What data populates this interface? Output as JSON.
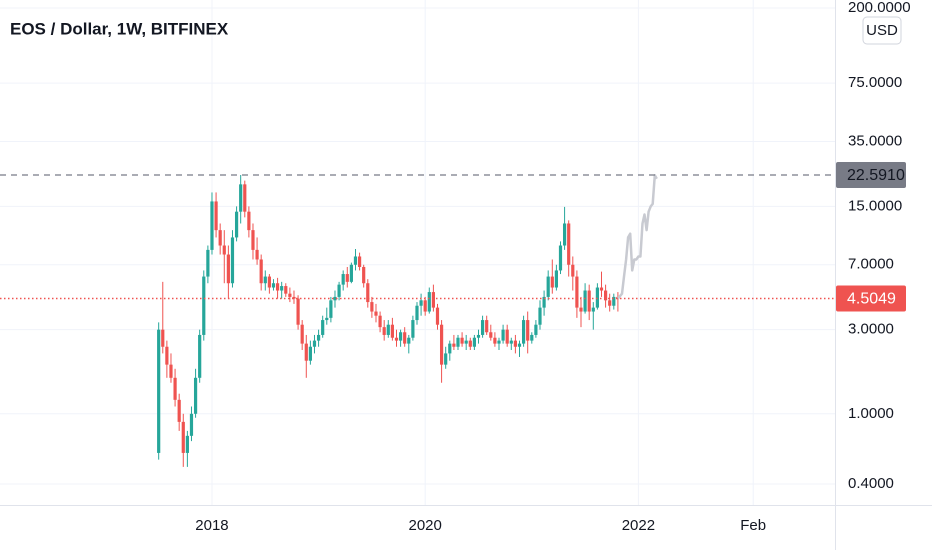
{
  "chart_data": {
    "type": "candlestick",
    "title": "EOS / Dollar, 1W, BITFINEX",
    "currency": "USD",
    "log_scale": true,
    "grid": true,
    "up_color": "#26a69a",
    "down_color": "#ef5350",
    "xlim": [
      -103.4,
      303.9
    ],
    "ylim": [
      0.304,
      222
    ],
    "xticks": [
      {
        "value": 0,
        "label": "2018"
      },
      {
        "value": 104,
        "label": "2020"
      },
      {
        "value": 208,
        "label": "2022"
      },
      {
        "value": 264,
        "label": "Feb"
      }
    ],
    "yticks": [
      {
        "value": 0.4,
        "label": "0.4000"
      },
      {
        "value": 1,
        "label": "1.0000"
      },
      {
        "value": 3,
        "label": "3.0000"
      },
      {
        "value": 7,
        "label": "7.0000"
      },
      {
        "value": 15,
        "label": "15.0000"
      },
      {
        "value": 35,
        "label": "35.0000"
      },
      {
        "value": 75,
        "label": "75.0000"
      },
      {
        "value": 200,
        "label": "200.0000"
      }
    ],
    "price_lines": [
      {
        "value": 22.591,
        "label": "22.5910",
        "color": "#787b86",
        "style": "dashed"
      },
      {
        "value": 4.5049,
        "color": "#ef5350",
        "style": "dotted"
      }
    ],
    "candles": [
      [
        -26,
        0.6,
        3.3,
        0.55,
        3.0
      ],
      [
        -24,
        3.0,
        5.6,
        2.2,
        2.4
      ],
      [
        -22,
        2.4,
        2.6,
        1.6,
        1.9
      ],
      [
        -20,
        1.9,
        2.2,
        1.5,
        1.6
      ],
      [
        -18,
        1.6,
        1.8,
        1.1,
        1.2
      ],
      [
        -16,
        1.2,
        1.3,
        0.8,
        0.9
      ],
      [
        -14,
        0.9,
        1.0,
        0.5,
        0.6
      ],
      [
        -12,
        0.6,
        0.8,
        0.5,
        0.75
      ],
      [
        -10,
        0.75,
        1.1,
        0.7,
        1.0
      ],
      [
        -8,
        1.0,
        1.8,
        0.95,
        1.6
      ],
      [
        -6,
        1.6,
        3.0,
        1.5,
        2.8
      ],
      [
        -4,
        2.8,
        6.5,
        2.6,
        6.0
      ],
      [
        -2,
        6.0,
        9.0,
        5.5,
        8.5
      ],
      [
        0,
        8.5,
        18,
        8,
        16
      ],
      [
        2,
        16,
        18,
        10,
        11
      ],
      [
        4,
        11,
        12,
        8,
        9
      ],
      [
        6,
        9,
        11,
        5.5,
        8
      ],
      [
        8,
        8,
        9,
        4.5,
        5.5
      ],
      [
        10,
        5.5,
        11,
        5.2,
        10
      ],
      [
        12,
        10,
        15,
        9.5,
        14
      ],
      [
        14,
        14,
        22.6,
        12,
        20
      ],
      [
        16,
        20,
        21,
        13,
        14
      ],
      [
        18,
        14,
        15,
        10,
        11
      ],
      [
        20,
        11,
        12,
        7.5,
        8.5
      ],
      [
        22,
        8.5,
        10,
        7,
        7.5
      ],
      [
        24,
        7.5,
        8,
        5,
        5.5
      ],
      [
        26,
        5.5,
        6.5,
        5,
        6
      ],
      [
        28,
        6,
        6.2,
        4.8,
        5.2
      ],
      [
        30,
        5.2,
        5.8,
        5,
        5.5
      ],
      [
        32,
        5.5,
        5.9,
        4.5,
        5.0
      ],
      [
        34,
        5.0,
        5.6,
        4.5,
        5.3
      ],
      [
        36,
        5.3,
        5.5,
        4.6,
        4.8
      ],
      [
        38,
        4.8,
        5.2,
        4.3,
        4.6
      ],
      [
        40,
        4.6,
        5.0,
        4.2,
        4.5
      ],
      [
        42,
        4.5,
        4.7,
        3.0,
        3.2
      ],
      [
        44,
        3.2,
        3.4,
        2.3,
        2.5
      ],
      [
        46,
        2.5,
        2.8,
        1.6,
        2.0
      ],
      [
        48,
        2.0,
        2.6,
        1.9,
        2.4
      ],
      [
        50,
        2.4,
        2.8,
        2.2,
        2.6
      ],
      [
        52,
        2.6,
        3.0,
        2.4,
        2.8
      ],
      [
        54,
        2.8,
        3.6,
        2.7,
        3.4
      ],
      [
        56,
        3.4,
        4.0,
        3.2,
        3.5
      ],
      [
        58,
        3.5,
        4.6,
        3.3,
        4.4
      ],
      [
        60,
        4.4,
        5.0,
        4.0,
        4.6
      ],
      [
        62,
        4.6,
        5.6,
        4.4,
        5.4
      ],
      [
        64,
        5.4,
        6.5,
        5.0,
        6.2
      ],
      [
        66,
        6.2,
        6.8,
        5.2,
        5.6
      ],
      [
        68,
        5.6,
        7.2,
        5.5,
        7.0
      ],
      [
        70,
        7.0,
        8.6,
        6.5,
        7.8
      ],
      [
        72,
        7.8,
        8.2,
        6.5,
        6.8
      ],
      [
        74,
        6.8,
        7.0,
        5.2,
        5.5
      ],
      [
        76,
        5.5,
        5.8,
        4.0,
        4.3
      ],
      [
        78,
        4.3,
        4.6,
        3.5,
        3.8
      ],
      [
        80,
        3.8,
        4.2,
        3.3,
        3.6
      ],
      [
        82,
        3.6,
        3.8,
        2.9,
        3.1
      ],
      [
        84,
        3.1,
        3.4,
        2.6,
        2.8
      ],
      [
        86,
        2.8,
        3.4,
        2.7,
        3.2
      ],
      [
        88,
        3.2,
        3.5,
        2.6,
        2.7
      ],
      [
        90,
        2.7,
        3.0,
        2.4,
        2.6
      ],
      [
        92,
        2.6,
        3.0,
        2.4,
        2.9
      ],
      [
        94,
        2.9,
        3.1,
        2.4,
        2.5
      ],
      [
        96,
        2.5,
        2.8,
        2.2,
        2.7
      ],
      [
        98,
        2.7,
        3.6,
        2.6,
        3.4
      ],
      [
        100,
        3.4,
        4.3,
        3.2,
        4.1
      ],
      [
        102,
        4.1,
        4.8,
        3.6,
        4.4
      ],
      [
        104,
        4.4,
        4.6,
        3.6,
        3.8
      ],
      [
        106,
        3.8,
        5.2,
        3.7,
        4.9
      ],
      [
        108,
        4.9,
        5.4,
        3.8,
        4.0
      ],
      [
        110,
        4.0,
        4.2,
        3.0,
        3.2
      ],
      [
        112,
        3.2,
        3.4,
        1.5,
        1.9
      ],
      [
        114,
        1.9,
        2.4,
        1.8,
        2.2
      ],
      [
        116,
        2.2,
        2.6,
        2.0,
        2.5
      ],
      [
        118,
        2.5,
        2.8,
        2.3,
        2.4
      ],
      [
        120,
        2.4,
        2.8,
        2.3,
        2.7
      ],
      [
        122,
        2.7,
        2.9,
        2.4,
        2.5
      ],
      [
        124,
        2.5,
        2.8,
        2.3,
        2.6
      ],
      [
        126,
        2.6,
        2.7,
        2.3,
        2.4
      ],
      [
        128,
        2.4,
        2.8,
        2.3,
        2.7
      ],
      [
        130,
        2.7,
        3.0,
        2.5,
        2.8
      ],
      [
        132,
        2.8,
        3.6,
        2.7,
        3.4
      ],
      [
        134,
        3.4,
        3.6,
        2.8,
        2.9
      ],
      [
        136,
        2.9,
        3.2,
        2.6,
        2.7
      ],
      [
        138,
        2.7,
        2.9,
        2.4,
        2.5
      ],
      [
        140,
        2.5,
        2.7,
        2.3,
        2.6
      ],
      [
        142,
        2.6,
        3.2,
        2.5,
        3.0
      ],
      [
        144,
        3.0,
        3.2,
        2.4,
        2.5
      ],
      [
        146,
        2.5,
        2.7,
        2.3,
        2.6
      ],
      [
        148,
        2.6,
        2.8,
        2.2,
        2.4
      ],
      [
        150,
        2.4,
        2.6,
        2.1,
        2.5
      ],
      [
        152,
        2.5,
        3.6,
        2.4,
        3.4
      ],
      [
        154,
        3.4,
        3.8,
        2.2,
        2.6
      ],
      [
        156,
        2.6,
        2.9,
        2.5,
        2.8
      ],
      [
        158,
        2.8,
        3.4,
        2.7,
        3.2
      ],
      [
        160,
        3.2,
        4.4,
        3.0,
        4.0
      ],
      [
        162,
        4.0,
        5.0,
        3.6,
        4.6
      ],
      [
        164,
        4.6,
        6.5,
        4.4,
        6.0
      ],
      [
        166,
        6.0,
        7.5,
        4.8,
        5.2
      ],
      [
        168,
        5.2,
        7.0,
        5.0,
        6.5
      ],
      [
        170,
        6.5,
        9.5,
        6.2,
        9.0
      ],
      [
        172,
        9.0,
        14.9,
        8.5,
        12.0
      ],
      [
        174,
        12.0,
        12.5,
        6.0,
        7.0
      ],
      [
        176,
        7.0,
        7.8,
        5.0,
        6.0
      ],
      [
        178,
        6.0,
        6.5,
        3.5,
        4.0
      ],
      [
        180,
        4.0,
        4.6,
        3.1,
        3.8
      ],
      [
        182,
        3.8,
        5.5,
        3.7,
        5.0
      ],
      [
        184,
        5.0,
        5.4,
        3.4,
        3.8
      ],
      [
        186,
        3.8,
        4.3,
        3.0,
        4.0
      ],
      [
        188,
        4.0,
        5.5,
        3.9,
        5.2
      ],
      [
        190,
        5.2,
        6.4,
        4.6,
        5.0
      ],
      [
        192,
        5.0,
        5.4,
        4.0,
        4.4
      ],
      [
        194,
        4.4,
        4.8,
        3.8,
        4.1
      ],
      [
        196,
        4.1,
        4.8,
        3.9,
        4.6
      ],
      [
        198,
        4.6,
        4.9,
        3.8,
        4.5049
      ]
    ],
    "projection": {
      "color": "#c8cad1",
      "x": [
        198,
        200,
        201,
        202,
        203,
        204,
        205,
        206,
        207,
        208,
        209,
        210,
        211,
        212,
        213,
        214,
        215,
        216,
        217
      ],
      "values": [
        4.5,
        4.8,
        6,
        7.5,
        10,
        10.5,
        6.5,
        7.5,
        7.5,
        7.8,
        7.8,
        12,
        13.5,
        11,
        14,
        15,
        15.5,
        22.5,
        21.5
      ]
    }
  }
}
